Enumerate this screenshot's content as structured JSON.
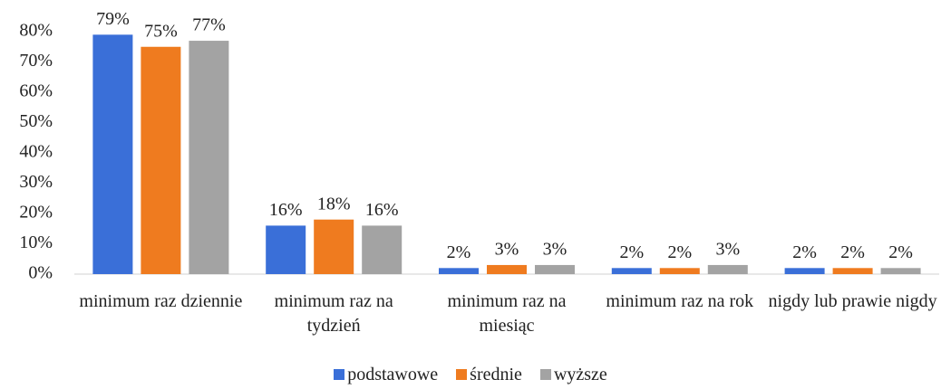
{
  "chart_data": {
    "type": "bar",
    "categories": [
      "minimum raz dziennie",
      "minimum raz na tydzień",
      "minimum raz na miesiąc",
      "minimum raz na rok",
      "nigdy lub prawie nigdy"
    ],
    "series": [
      {
        "name": "podstawowe",
        "color": "#3a6fd8",
        "values": [
          79,
          16,
          2,
          2,
          2
        ],
        "value_labels": [
          "79%",
          "16%",
          "2%",
          "2%",
          "2%"
        ]
      },
      {
        "name": "średnie",
        "color": "#ef7b1f",
        "values": [
          75,
          18,
          3,
          2,
          2
        ],
        "value_labels": [
          "75%",
          "18%",
          "3%",
          "2%",
          "2%"
        ]
      },
      {
        "name": "wyższe",
        "color": "#a3a3a3",
        "values": [
          77,
          16,
          3,
          3,
          2
        ],
        "value_labels": [
          "77%",
          "16%",
          "3%",
          "3%",
          "2%"
        ]
      }
    ],
    "ylim": [
      0,
      80
    ],
    "yticks": [
      {
        "value": 0,
        "label": "0%"
      },
      {
        "value": 10,
        "label": "10%"
      },
      {
        "value": 20,
        "label": "20%"
      },
      {
        "value": 30,
        "label": "30%"
      },
      {
        "value": 40,
        "label": "40%"
      },
      {
        "value": 50,
        "label": "50%"
      },
      {
        "value": 60,
        "label": "60%"
      },
      {
        "value": 70,
        "label": "70%"
      },
      {
        "value": 80,
        "label": "80%"
      }
    ],
    "grid": false,
    "legend": "bottom"
  }
}
